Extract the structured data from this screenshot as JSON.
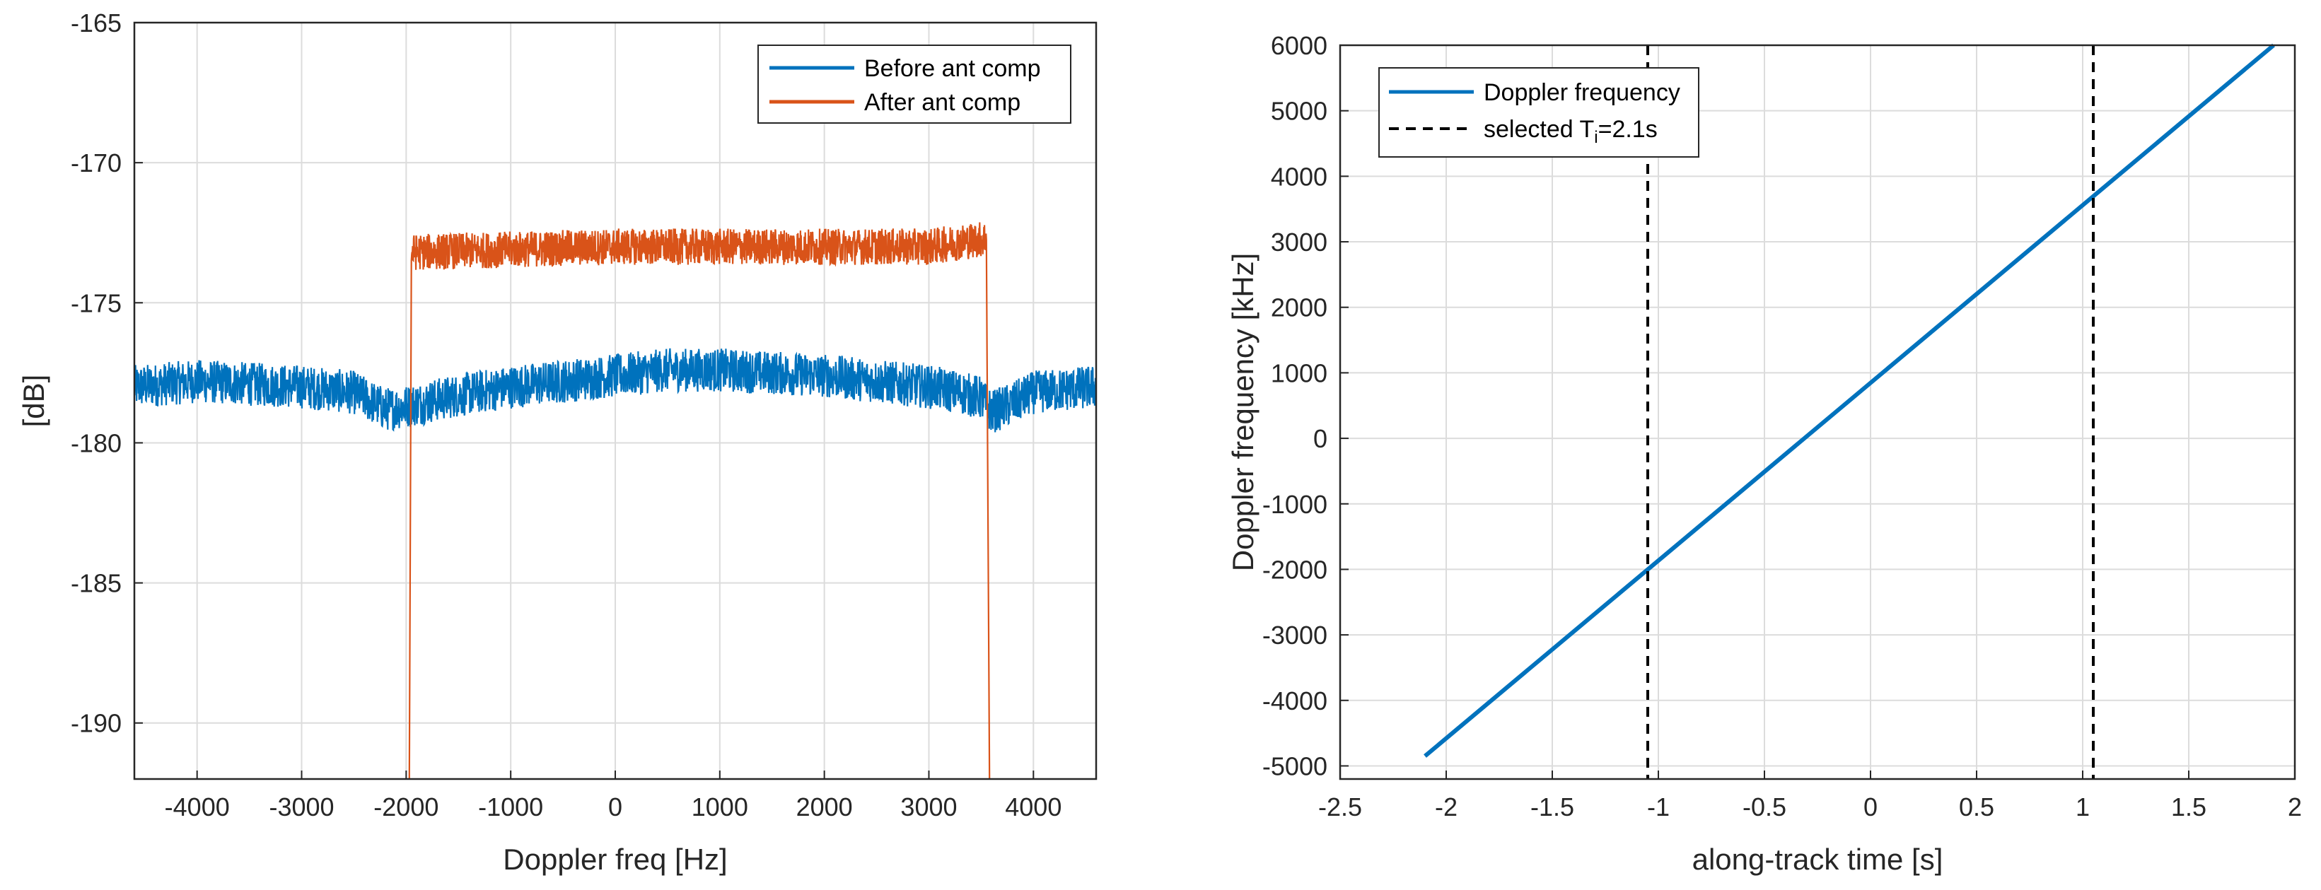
{
  "chart_data": [
    {
      "type": "line",
      "xlabel": "Doppler freq [Hz]",
      "ylabel": "[dB]",
      "xlim": [
        -4600,
        4600
      ],
      "ylim": [
        -192,
        -165
      ],
      "xticks": [
        -4000,
        -3000,
        -2000,
        -1000,
        0,
        1000,
        2000,
        3000,
        4000
      ],
      "yticks": [
        -165,
        -170,
        -175,
        -180,
        -185,
        -190
      ],
      "grid": true,
      "legend_position": "top-right",
      "series": [
        {
          "name": "Before ant comp",
          "color": "#0072BD",
          "x": [
            -4600,
            -4000,
            -3000,
            -2500,
            -2200,
            -2000,
            -1500,
            -1000,
            -500,
            0,
            500,
            1000,
            1500,
            2000,
            2500,
            3000,
            3300,
            3500,
            3600,
            3800,
            4000,
            4600
          ],
          "y": [
            -178.0,
            -177.8,
            -178.0,
            -178.2,
            -178.8,
            -178.7,
            -178.3,
            -178.0,
            -177.8,
            -177.6,
            -177.4,
            -177.4,
            -177.5,
            -177.6,
            -177.8,
            -178.0,
            -178.2,
            -178.4,
            -178.9,
            -178.6,
            -178.2,
            -178.0
          ],
          "noise_db": 0.6
        },
        {
          "name": "After ant comp",
          "color": "#D95319",
          "x": [
            -1970,
            -1950,
            -1000,
            0,
            1000,
            2000,
            3000,
            3550,
            3580
          ],
          "y": [
            -192,
            -173.2,
            -173.1,
            -173.0,
            -173.0,
            -173.0,
            -173.0,
            -172.7,
            -192
          ],
          "noise_db": 0.5
        }
      ]
    },
    {
      "type": "line",
      "xlabel": "along-track time [s]",
      "ylabel": "Doppler frequency [kHz]",
      "xlim": [
        -2.5,
        2
      ],
      "ylim": [
        -5200,
        6000
      ],
      "xticks": [
        -2.5,
        -2,
        -1.5,
        -1,
        -0.5,
        0,
        0.5,
        1,
        1.5,
        2
      ],
      "yticks": [
        6000,
        5000,
        4000,
        3000,
        2000,
        1000,
        0,
        -1000,
        -2000,
        -3000,
        -4000,
        -5000
      ],
      "grid": true,
      "legend_position": "top-left",
      "series": [
        {
          "name": "Doppler frequency",
          "color": "#0072BD",
          "x": [
            -2.1,
            1.9
          ],
          "y": [
            -4850,
            6000
          ]
        }
      ],
      "vlines": {
        "name": "selected T",
        "name_sub": "i",
        "name_suffix": "=2.1s",
        "x": [
          -1.05,
          1.05
        ],
        "color": "#000000"
      }
    }
  ]
}
